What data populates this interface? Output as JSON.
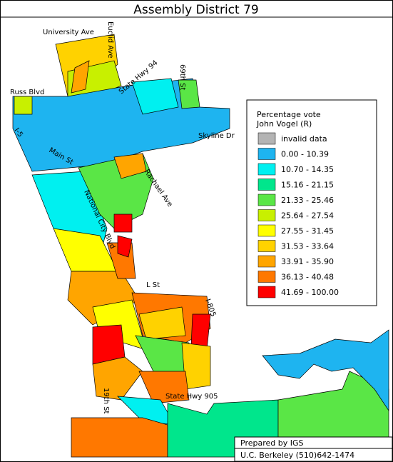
{
  "title": "Assembly District 79",
  "legend": {
    "title_lines": [
      "Percentage vote",
      "John Vogel (R)"
    ],
    "items": [
      {
        "label": "invalid data",
        "color": "#b4b4b4"
      },
      {
        "label": "0.00 -  10.39",
        "color": "#1eb4f0"
      },
      {
        "label": "10.70 -  14.35",
        "color": "#00f0f0"
      },
      {
        "label": "15.16 -  21.15",
        "color": "#00e68c"
      },
      {
        "label": "21.33 -  25.46",
        "color": "#5ae646"
      },
      {
        "label": "25.64 -  27.54",
        "color": "#c8f000"
      },
      {
        "label": "27.55 -  31.45",
        "color": "#ffff00"
      },
      {
        "label": "31.53 -  33.64",
        "color": "#ffd200"
      },
      {
        "label": "33.91 -  35.90",
        "color": "#ffa500"
      },
      {
        "label": "36.13 -  40.48",
        "color": "#ff7800"
      },
      {
        "label": "41.69 - 100.00",
        "color": "#ff0000"
      }
    ]
  },
  "streets": [
    "University Ave",
    "Euclid Ave",
    "State Hwy 94",
    "69th St",
    "Russ Blvd",
    "Skyline Dr",
    "I-5",
    "Main St",
    "Rachael Ave",
    "National City Blvd",
    "L St",
    "I-805",
    "19th St",
    "State Hwy 905"
  ],
  "credits": [
    "Prepared by IGS",
    "U.C. Berkeley (510)642-1474"
  ]
}
